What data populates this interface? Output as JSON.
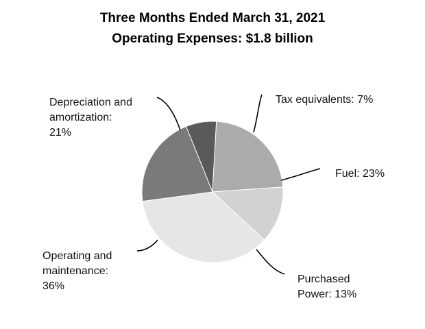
{
  "chart_data": {
    "type": "pie",
    "title": "Three Months Ended March 31, 2021",
    "subtitle": "Operating Expenses: $1.8 billion",
    "slices": [
      {
        "label_lines": [
          "Tax equivalents: 7%"
        ],
        "value": 7,
        "color": "#5a5a5a"
      },
      {
        "label_lines": [
          "Fuel: 23%"
        ],
        "value": 23,
        "color": "#ababab"
      },
      {
        "label_lines": [
          "Purchased",
          "Power: 13%"
        ],
        "value": 13,
        "color": "#d2d2d2"
      },
      {
        "label_lines": [
          "Operating and",
          "maintenance:",
          "36%"
        ],
        "value": 36,
        "color": "#e6e6e6"
      },
      {
        "label_lines": [
          "Depreciation and",
          "amortization:",
          "21%"
        ],
        "value": 21,
        "color": "#7a7a7a"
      }
    ]
  }
}
